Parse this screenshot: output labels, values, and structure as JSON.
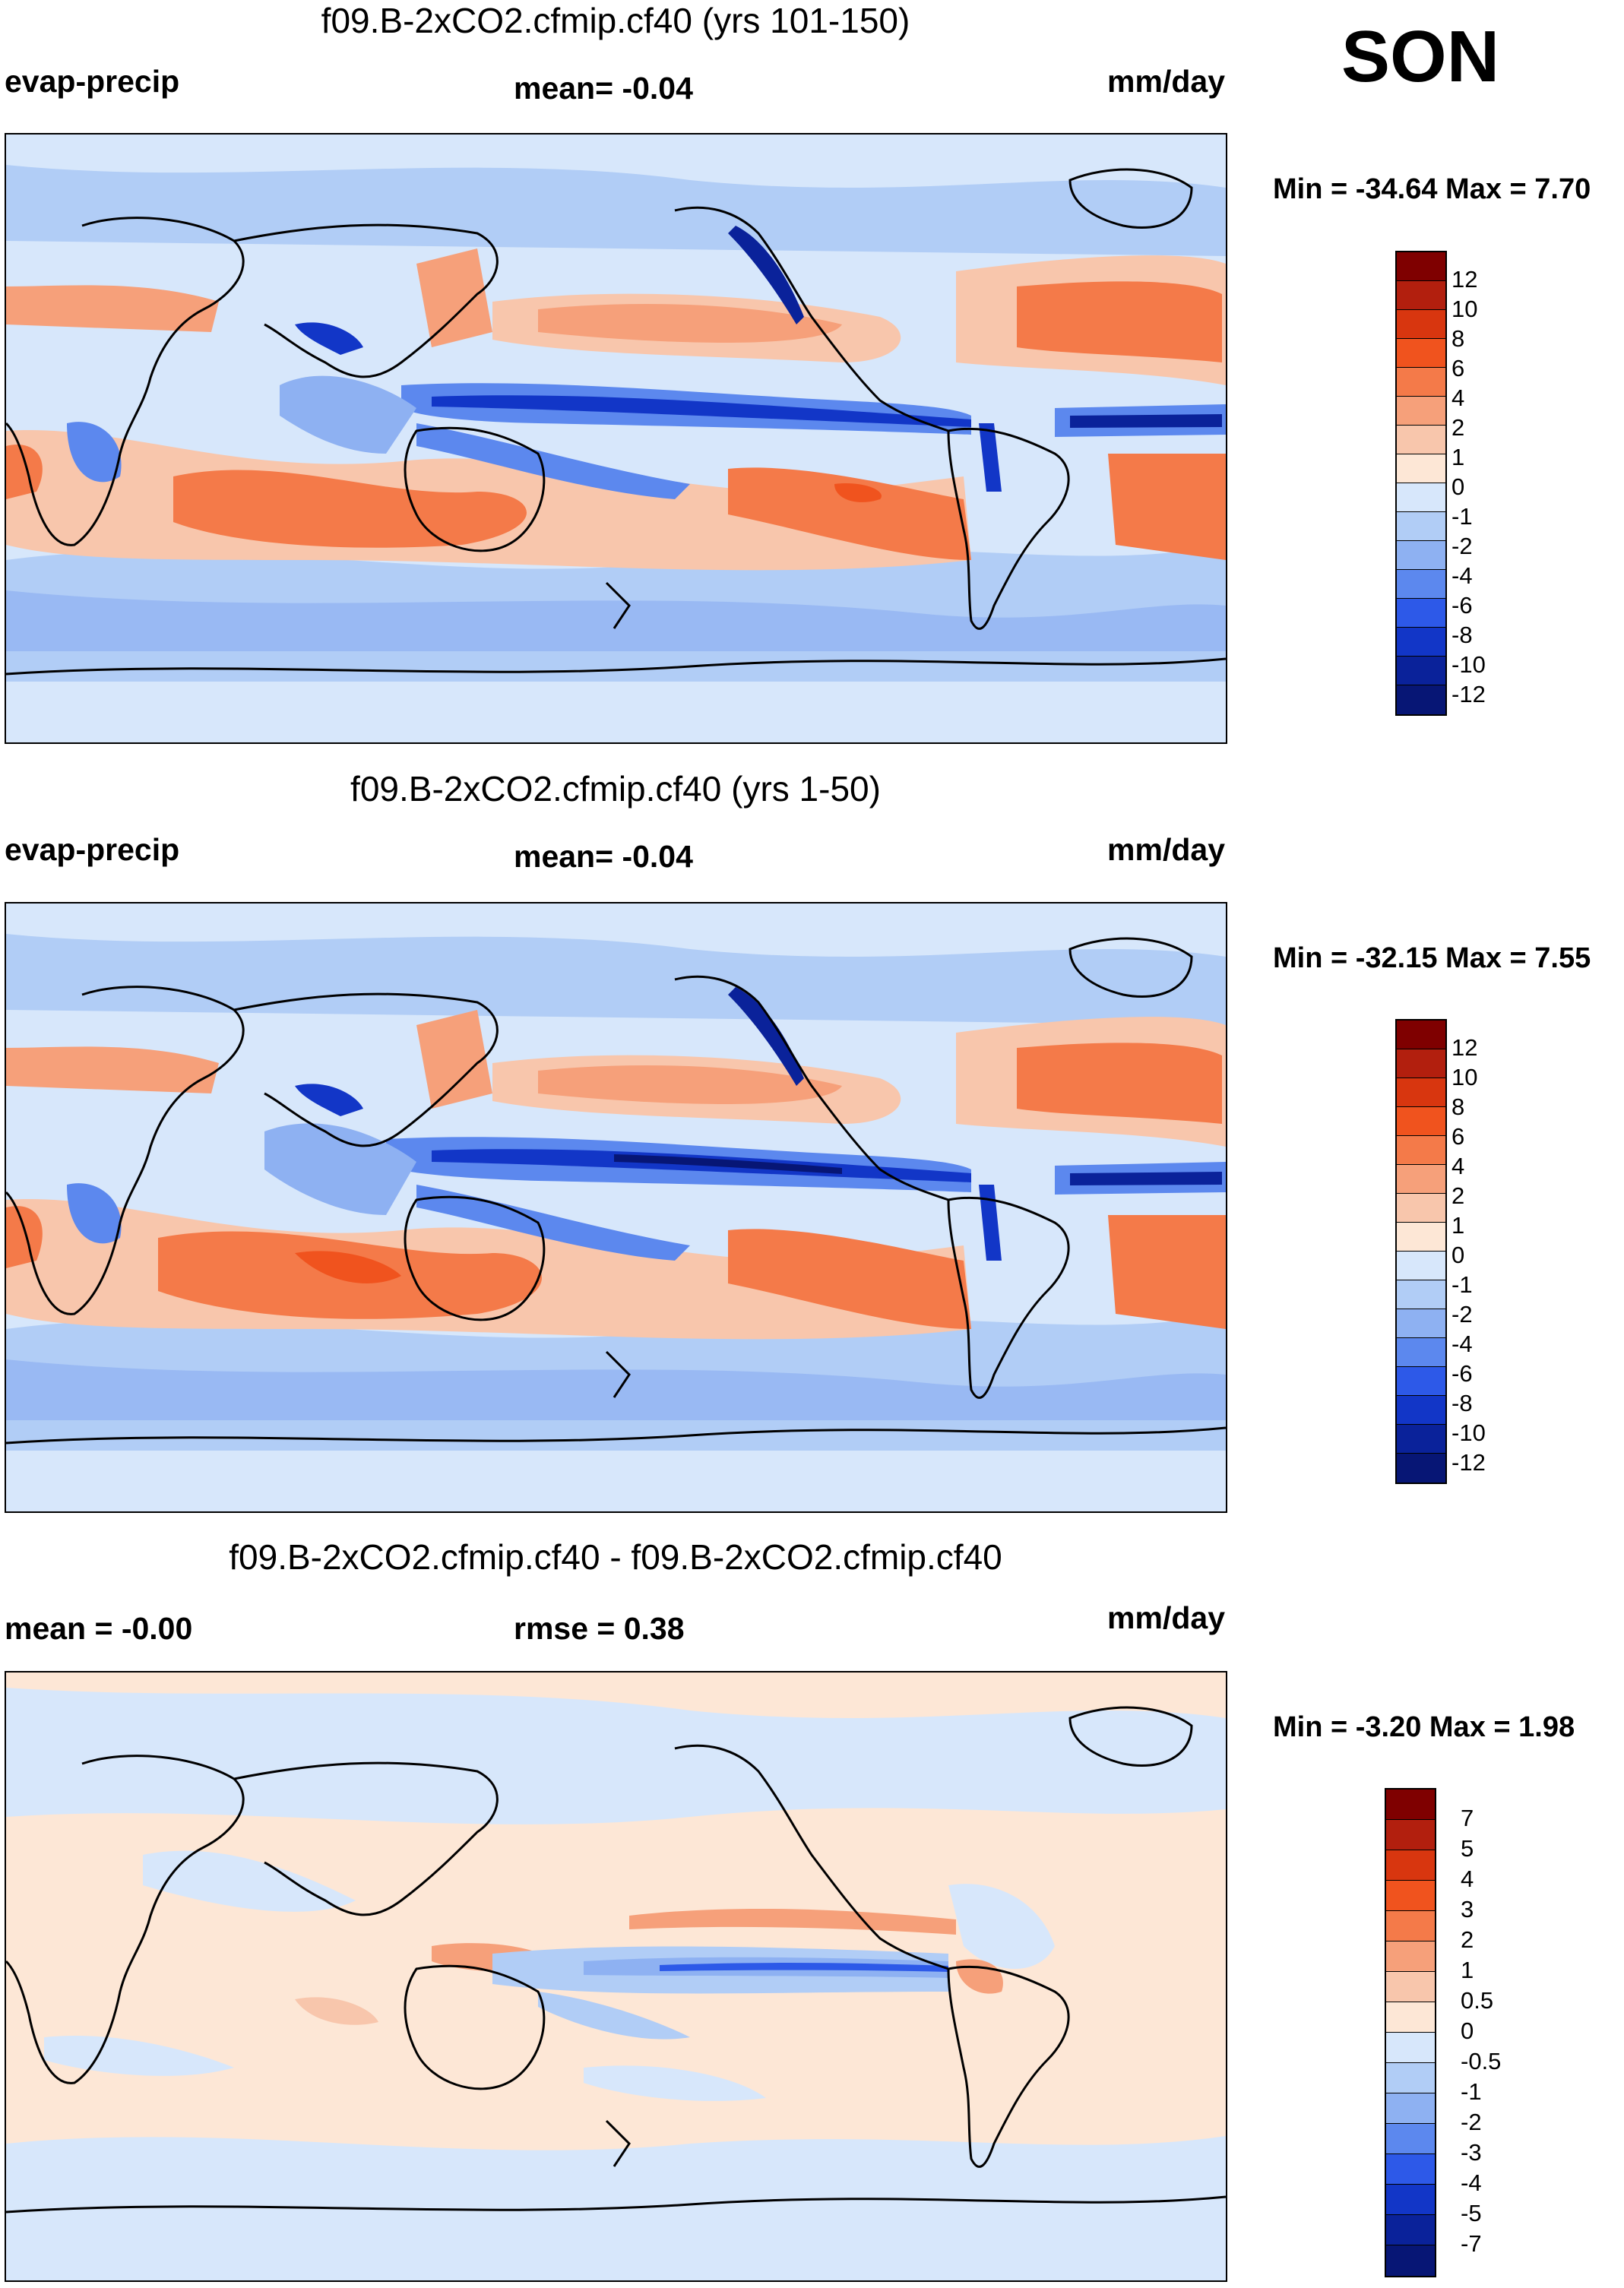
{
  "season": "SON",
  "panels": [
    {
      "title": "f09.B-2xCO2.cfmip.cf40 (yrs 101-150)",
      "left_label": "evap-precip",
      "center_label": "mean=  -0.04",
      "right_label": "mm/day",
      "minmax": "Min = -34.64 Max =   7.70",
      "colorbar": {
        "levels": [
          "12",
          "10",
          "8",
          "6",
          "4",
          "2",
          "1",
          "0",
          "-1",
          "-2",
          "-4",
          "-6",
          "-8",
          "-10",
          "-12"
        ],
        "colors": [
          "#7f0000",
          "#b21f0e",
          "#d8360f",
          "#f0531e",
          "#f47a49",
          "#f6a07a",
          "#f8c6ac",
          "#fde7d6",
          "#d7e7fb",
          "#b1cdf6",
          "#8eb1f2",
          "#5c88ee",
          "#2d59e8",
          "#1236c7",
          "#0a229a",
          "#071675"
        ]
      }
    },
    {
      "title": "f09.B-2xCO2.cfmip.cf40 (yrs 1-50)",
      "left_label": "evap-precip",
      "center_label": "mean=  -0.04",
      "right_label": "mm/day",
      "minmax": "Min = -32.15 Max =   7.55",
      "colorbar": {
        "levels": [
          "12",
          "10",
          "8",
          "6",
          "4",
          "2",
          "1",
          "0",
          "-1",
          "-2",
          "-4",
          "-6",
          "-8",
          "-10",
          "-12"
        ],
        "colors": [
          "#7f0000",
          "#b21f0e",
          "#d8360f",
          "#f0531e",
          "#f47a49",
          "#f6a07a",
          "#f8c6ac",
          "#fde7d6",
          "#d7e7fb",
          "#b1cdf6",
          "#8eb1f2",
          "#5c88ee",
          "#2d59e8",
          "#1236c7",
          "#0a229a",
          "#071675"
        ]
      }
    },
    {
      "title": "f09.B-2xCO2.cfmip.cf40 - f09.B-2xCO2.cfmip.cf40",
      "left_label": "mean =  -0.00",
      "center_label": "rmse =   0.38",
      "right_label": "mm/day",
      "minmax": "Min =  -3.20 Max =   1.98",
      "colorbar": {
        "levels": [
          "7",
          "5",
          "4",
          "3",
          "2",
          "1",
          "0.5",
          "0",
          "-0.5",
          "-1",
          "-2",
          "-3",
          "-4",
          "-5",
          "-7"
        ],
        "colors": [
          "#7f0000",
          "#b21f0e",
          "#d8360f",
          "#f0531e",
          "#f47a49",
          "#f6a07a",
          "#f8c6ac",
          "#fde7d6",
          "#d7e7fb",
          "#b1cdf6",
          "#8eb1f2",
          "#5c88ee",
          "#2d59e8",
          "#1236c7",
          "#0a229a",
          "#071675"
        ]
      }
    }
  ]
}
